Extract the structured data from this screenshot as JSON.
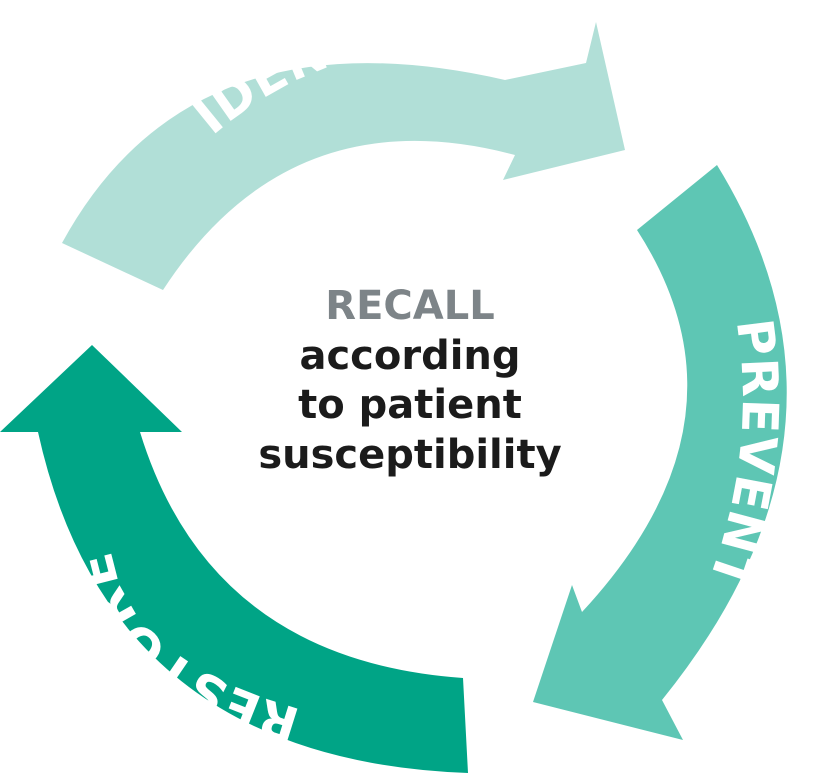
{
  "center": {
    "title": "RECALL",
    "lines": [
      "according",
      "to patient",
      "susceptibility"
    ]
  },
  "segments": [
    {
      "label": "IDENTIFY",
      "color": "#b1dfd7"
    },
    {
      "label": "PREVENT",
      "color": "#5ec6b4"
    },
    {
      "label": "RESTORE",
      "color": "#00a486"
    }
  ]
}
